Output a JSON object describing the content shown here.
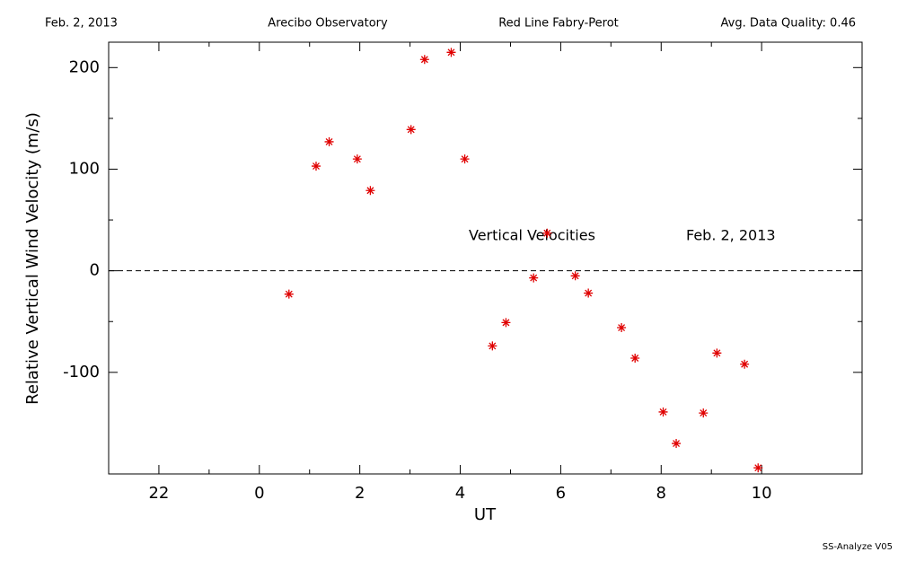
{
  "chart_data": {
    "type": "scatter",
    "header": [
      "Feb. 2, 2013",
      "Arecibo Observatory",
      "Red Line Fabry-Perot",
      "Avg. Data Quality: 0.46"
    ],
    "annotations": [
      "Vertical Velocities",
      "Feb. 2, 2013"
    ],
    "footer": "SS-Analyze V05",
    "xlabel": "UT",
    "ylabel": "Relative Vertical Wind Velocity (m/s)",
    "color": "#e00000",
    "hline": 0,
    "xlim": [
      -3,
      12
    ],
    "ylim": [
      -200,
      225
    ],
    "xticks": [
      {
        "value": -2,
        "label": "22"
      },
      0,
      2,
      4,
      6,
      8,
      10
    ],
    "yticks": [
      -100,
      0,
      100,
      200
    ],
    "x": [
      0.59,
      1.13,
      1.39,
      1.95,
      2.21,
      3.02,
      3.29,
      3.82,
      4.09,
      4.64,
      4.91,
      5.46,
      5.73,
      6.29,
      6.55,
      7.21,
      7.48,
      8.04,
      8.3,
      8.84,
      9.11,
      9.66,
      9.93
    ],
    "values": [
      -23,
      103,
      127,
      110,
      79,
      139,
      208,
      215,
      110,
      -74,
      -51,
      -7,
      37,
      -5,
      -22,
      -56,
      -86,
      -139,
      -170,
      -140,
      -81,
      -92,
      -194
    ]
  }
}
